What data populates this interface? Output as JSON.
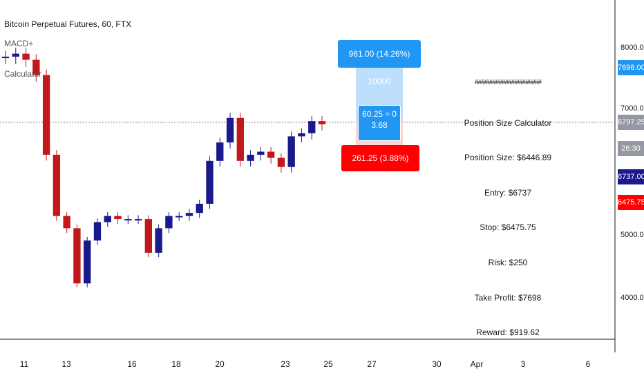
{
  "title": "Bitcoin Perpetual Futures, 60, FTX",
  "indicators": [
    "MACD+",
    "Calculator"
  ],
  "colors": {
    "bull": "#1a1a8c",
    "bear": "#c2181b",
    "target": "#2196f3",
    "stop": "#ff0000",
    "last": "#9598a1"
  },
  "position_tool": {
    "target_label": "961.00 (14.26%) 10000",
    "stop_label": "261.25 (3.88%) 10000",
    "center_line1": "60.25 ≈ 0",
    "center_line2": "3.68"
  },
  "panel": {
    "hash": "#####################",
    "heading": "Position Size Calculator",
    "lines": [
      "Position Size: $6446.89",
      "Entry: $6737",
      "Stop: $6475.75",
      "Risk: $250",
      "Take Profit: $7698",
      "Reward: $919.62"
    ]
  },
  "price_axis": {
    "labels": [
      "8000.00",
      "7000.00",
      "5000.00",
      "4000.00"
    ],
    "tags": {
      "target": "7698.00",
      "last": "6797.25",
      "countdown": "26:30",
      "entry": "6737.00",
      "stop": "6475.75"
    }
  },
  "time_axis": {
    "labels": [
      "11",
      "13",
      "16",
      "18",
      "20",
      "23",
      "25",
      "27",
      "30",
      "Apr",
      "3",
      "6"
    ]
  },
  "chart_data": {
    "type": "candlestick",
    "title": "Bitcoin Perpetual Futures, 60, FTX",
    "ylim": [
      3300,
      8600
    ],
    "x": [
      "Mar 10 12:00",
      "Mar 11",
      "Mar 11 12:00",
      "Mar 12",
      "Mar 12 06:00",
      "Mar 12 12:00",
      "Mar 12 18:00",
      "Mar 13",
      "Mar 13 06:00",
      "Mar 13 12:00",
      "Mar 14",
      "Mar 14 12:00",
      "Mar 15",
      "Mar 15 12:00",
      "Mar 16",
      "Mar 16 12:00",
      "Mar 17",
      "Mar 17 12:00",
      "Mar 18",
      "Mar 18 12:00",
      "Mar 19",
      "Mar 19 12:00",
      "Mar 20",
      "Mar 20 12:00",
      "Mar 21",
      "Mar 21 12:00",
      "Mar 22",
      "Mar 22 12:00",
      "Mar 23",
      "Mar 23 12:00",
      "Mar 24",
      "Mar 24 12:00"
    ],
    "close": [
      7900,
      7950,
      7850,
      7600,
      6300,
      5300,
      5100,
      4200,
      4900,
      5200,
      5300,
      5250,
      5250,
      5250,
      4700,
      5100,
      5300,
      5300,
      5350,
      5500,
      6200,
      6500,
      6900,
      6200,
      6300,
      6350,
      6250,
      6100,
      6600,
      6650,
      6850,
      6797
    ],
    "series": [
      {
        "name": "Entry",
        "value": 6737
      },
      {
        "name": "Stop",
        "value": 6475.75
      },
      {
        "name": "Take Profit",
        "value": 7698
      }
    ]
  }
}
